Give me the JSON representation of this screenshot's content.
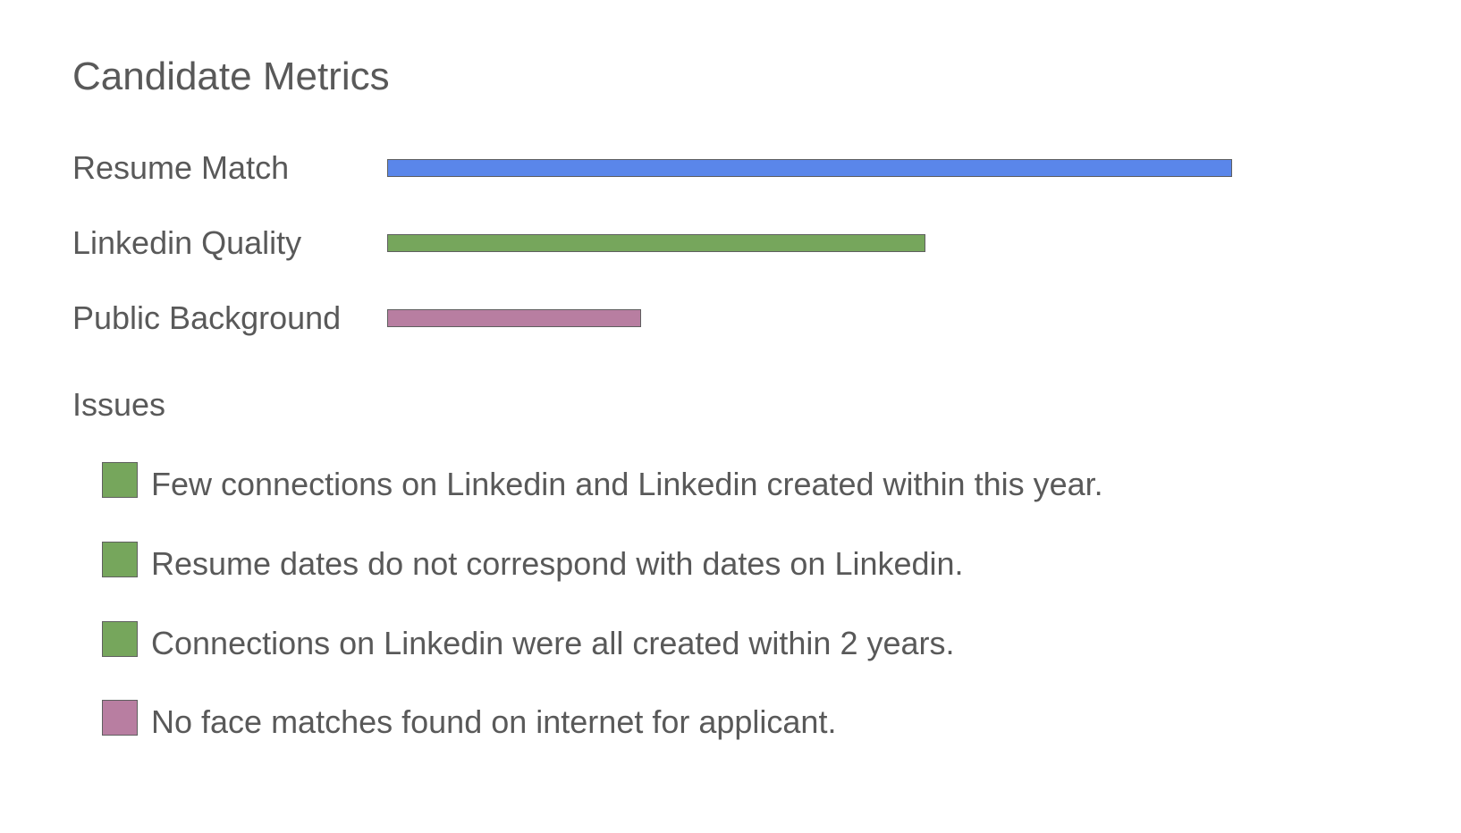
{
  "title": "Candidate Metrics",
  "chart_data": {
    "type": "bar",
    "orientation": "horizontal",
    "title": "Candidate Metrics",
    "categories": [
      "Resume Match",
      "Linkedin Quality",
      "Public Background"
    ],
    "values": [
      0.95,
      0.605,
      0.285
    ],
    "value_scale": "fraction of full track",
    "colors": [
      "#5a86ea",
      "#76a65c",
      "#b87ea1"
    ],
    "xlabel": "",
    "ylabel": "",
    "grid": false
  },
  "issues": {
    "heading": "Issues",
    "items": [
      {
        "text": "Few connections on Linkedin and Linkedin created within this year.",
        "color": "#76a65c"
      },
      {
        "text": "Resume dates do not correspond with dates on Linkedin.",
        "color": "#76a65c"
      },
      {
        "text": "Connections on Linkedin were all created within 2 years.",
        "color": "#76a65c"
      },
      {
        "text": "No face matches found on internet for applicant.",
        "color": "#b87ea1"
      }
    ]
  }
}
